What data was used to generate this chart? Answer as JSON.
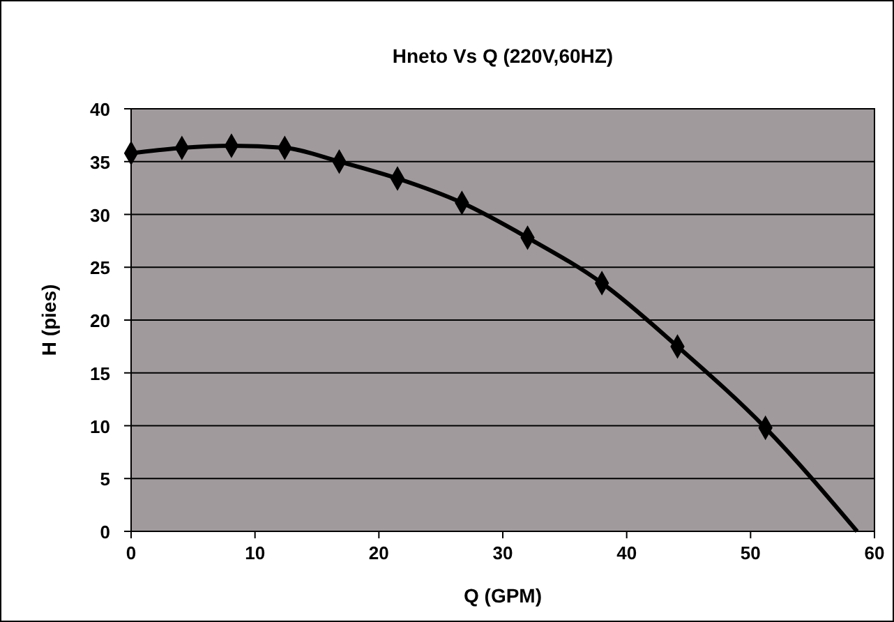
{
  "chart_data": {
    "type": "line",
    "title": "Hneto Vs Q (220V,60HZ)",
    "xlabel": "Q (GPM)",
    "ylabel": "H (pies)",
    "xlim": [
      0,
      60
    ],
    "xticks": [
      0,
      10,
      20,
      30,
      40,
      50,
      60
    ],
    "ylim": [
      0,
      40
    ],
    "yticks": [
      0,
      5,
      10,
      15,
      20,
      25,
      30,
      35,
      40
    ],
    "grid": "y",
    "series": [
      {
        "color": "#000000",
        "marker": "none",
        "x": [
          0,
          4.1,
          8.1,
          12.4,
          16.8,
          21.5,
          26.7,
          32,
          38,
          44.1,
          51.2,
          58.6
        ],
        "values": [
          35.8,
          36.3,
          36.5,
          36.3,
          35,
          33.4,
          31.1,
          27.8,
          23.5,
          17.5,
          9.8,
          0
        ]
      },
      {
        "type": "scatter",
        "color": "#000000",
        "marker": "diamond",
        "x": [
          0,
          4.1,
          8.1,
          12.4,
          16.8,
          21.5,
          26.7,
          32,
          38,
          44.1,
          51.2
        ],
        "values": [
          35.8,
          36.3,
          36.5,
          36.3,
          35,
          33.4,
          31.1,
          27.8,
          23.5,
          17.5,
          9.8
        ]
      }
    ]
  }
}
